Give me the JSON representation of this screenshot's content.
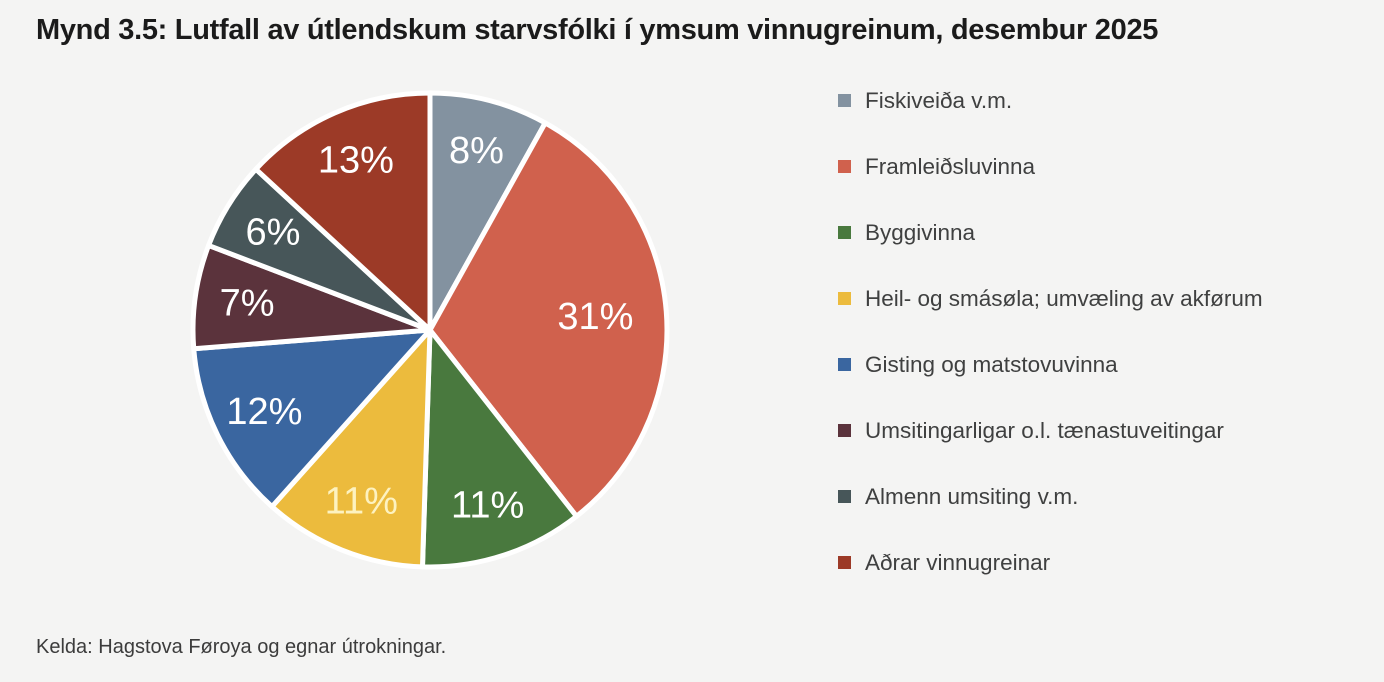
{
  "page": {
    "title": "Mynd 3.5: Lutfall av útlendskum starvsfólki í ymsum vinnugreinum, desembur 2025",
    "source_note": "Kelda: Hagstova Føroya og egnar útrokningar."
  },
  "chart_data": {
    "type": "pie",
    "title": "Mynd 3.5: Lutfall av útlendskum starvsfólki í ymsum vinnugreinum, desembur 2025",
    "categories": [
      "Fiskiveiða v.m.",
      "Framleiðsluvinna",
      "Byggivinna",
      "Heil- og smásøla; umvæling av akførum",
      "Gisting og matstovuvinna",
      "Umsitingarligar o.l. tænastuveitingar",
      "Almenn umsiting v.m.",
      "Aðrar vinnugreinar"
    ],
    "values": [
      8,
      31,
      11,
      11,
      12,
      7,
      6,
      13
    ],
    "value_labels": [
      "8%",
      "31%",
      "11%",
      "11%",
      "12%",
      "7%",
      "6%",
      "13%"
    ],
    "colors": [
      "#8392a0",
      "#d0614d",
      "#49793e",
      "#ecbb3d",
      "#3a66a0",
      "#5b333c",
      "#475659",
      "#9c3a27"
    ],
    "slice_label_colors": [
      "#ffffff",
      "#ffffff",
      "#ffffff",
      "#fdf2c0",
      "#ffffff",
      "#ffffff",
      "#ffffff",
      "#ffffff"
    ],
    "start_angle": "12 o'clock, clockwise",
    "legend_position": "right",
    "separator_color": "#ffffff"
  }
}
